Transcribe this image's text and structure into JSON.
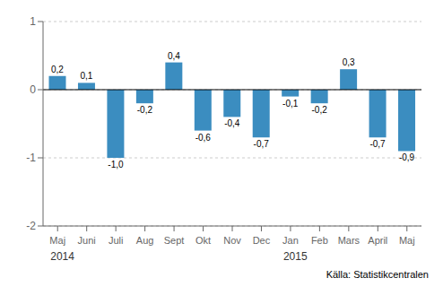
{
  "chart_data": {
    "type": "bar",
    "categories": [
      "Maj",
      "Juni",
      "Juli",
      "Aug",
      "Sept",
      "Okt",
      "Nov",
      "Dec",
      "Jan",
      "Feb",
      "Mars",
      "April",
      "Maj"
    ],
    "values": [
      0.2,
      0.1,
      -1.0,
      -0.2,
      0.4,
      -0.6,
      -0.4,
      -0.7,
      -0.1,
      -0.2,
      0.3,
      -0.7,
      -0.9
    ],
    "value_labels": [
      "0,2",
      "0,1",
      "-1,0",
      "-0,2",
      "0,4",
      "-0,6",
      "-0,4",
      "-0,7",
      "-0,1",
      "-0,2",
      "0,3",
      "-0,7",
      "-0,9"
    ],
    "color": "#3b8dc0",
    "ylim": [
      -2,
      1
    ],
    "yticks": [
      -2,
      -1,
      0,
      1
    ],
    "grid": true,
    "annotations": [
      {
        "text": "2014",
        "x": 0
      },
      {
        "text": "2015",
        "x": 8
      },
      {
        "text": "Källa: Statistikcentralen"
      }
    ]
  }
}
